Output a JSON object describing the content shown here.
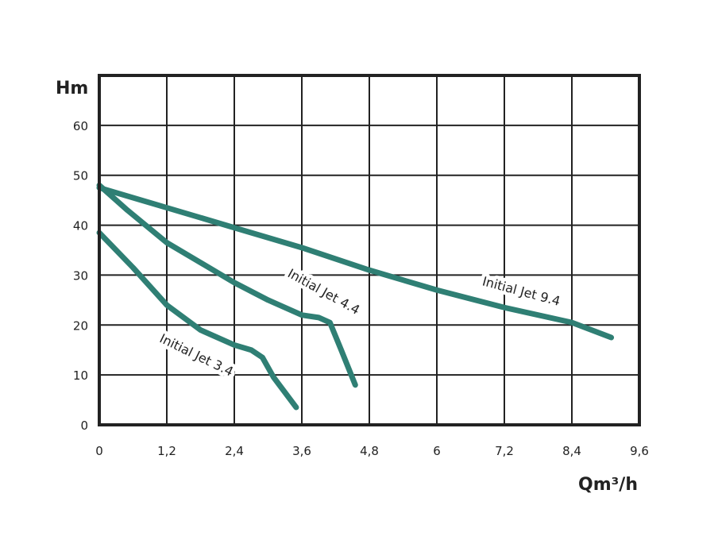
{
  "chart_data": {
    "type": "line",
    "title": "",
    "xlabel": "Qm³/h",
    "ylabel": "Hm",
    "xlim": [
      0,
      9.6
    ],
    "ylim": [
      0,
      70
    ],
    "grid": true,
    "x_ticks": [
      0,
      1.2,
      2.4,
      3.6,
      4.8,
      6,
      7.2,
      8.4,
      9.6
    ],
    "x_tick_labels": [
      "0",
      "1,2",
      "2,4",
      "3,6",
      "4,8",
      "6",
      "7,2",
      "8,4",
      "9,6"
    ],
    "y_ticks": [
      0,
      10,
      20,
      30,
      40,
      50,
      60
    ],
    "y_tick_labels": [
      "0",
      "10",
      "20",
      "30",
      "40",
      "50",
      "60"
    ],
    "line_color": "#2f7f74",
    "series": [
      {
        "name": "Initial Jet 9.4",
        "x": [
          0,
          1.2,
          2.4,
          3.6,
          4.8,
          6,
          7.2,
          8.4,
          9.1
        ],
        "y": [
          47.5,
          43.5,
          39.5,
          35.5,
          31,
          27,
          23.5,
          20.5,
          17.5
        ]
      },
      {
        "name": "Initial Jet 4.4",
        "x": [
          0,
          0.5,
          1.2,
          2.4,
          3.0,
          3.6,
          3.9,
          4.1,
          4.3,
          4.55
        ],
        "y": [
          48,
          43,
          36.5,
          28.5,
          25,
          22,
          21.5,
          20.5,
          15,
          8
        ]
      },
      {
        "name": "Initial Jet 3.4",
        "x": [
          0,
          0.6,
          1.2,
          1.8,
          2.4,
          2.7,
          2.9,
          3.1,
          3.5
        ],
        "y": [
          38.5,
          31.5,
          24,
          19,
          16,
          15,
          13.5,
          9.5,
          3.5
        ]
      }
    ]
  }
}
